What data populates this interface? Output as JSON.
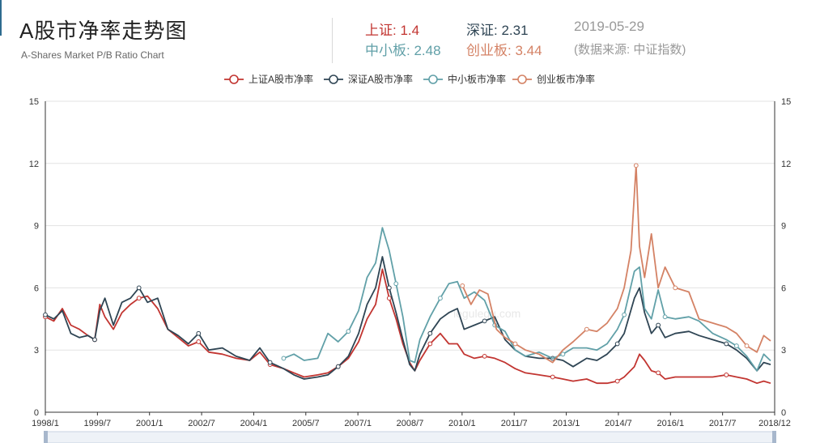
{
  "header": {
    "title": "A股市净率走势图",
    "subtitle": "A-Shares Market P/B Ratio Chart",
    "date": "2019-05-29",
    "source": "(数据来源: 中证指数)"
  },
  "stats": [
    {
      "label": "上证: ",
      "value": "1.4",
      "color": "#c23531"
    },
    {
      "label": "深证: ",
      "value": "2.31",
      "color": "#2f4554"
    },
    {
      "label": "中小板: ",
      "value": "2.48",
      "color": "#61a0a8"
    },
    {
      "label": "创业板: ",
      "value": "3.44",
      "color": "#d48265"
    }
  ],
  "watermark": "legulegu.com",
  "chart_data": {
    "type": "line",
    "x_ticks": [
      "1998/1",
      "1999/7",
      "2001/1",
      "2002/7",
      "2004/1",
      "2005/7",
      "2007/1",
      "2008/7",
      "2010/1",
      "2011/7",
      "2013/1",
      "2014/7",
      "2016/1",
      "2017/7",
      "2018/12"
    ],
    "y_ticks": [
      "0",
      "3",
      "6",
      "9",
      "12",
      "15"
    ],
    "ylim": [
      0,
      15
    ],
    "xlim": [
      1998.0,
      2019.42
    ],
    "grid": true,
    "legend": "top-center",
    "series": [
      {
        "name": "上证A股市净率",
        "color": "#c23531",
        "x": [
          1998.0,
          1998.25,
          1998.5,
          1998.75,
          1999.0,
          1999.25,
          1999.45,
          1999.6,
          1999.75,
          2000.0,
          2000.25,
          2000.5,
          2000.75,
          2001.0,
          2001.3,
          2001.6,
          2001.9,
          2002.2,
          2002.5,
          2002.8,
          2003.2,
          2003.6,
          2004.0,
          2004.3,
          2004.6,
          2005.0,
          2005.3,
          2005.6,
          2006.0,
          2006.3,
          2006.6,
          2006.9,
          2007.2,
          2007.45,
          2007.7,
          2007.9,
          2008.1,
          2008.3,
          2008.5,
          2008.7,
          2008.85,
          2009.0,
          2009.3,
          2009.6,
          2009.85,
          2010.1,
          2010.3,
          2010.6,
          2010.9,
          2011.2,
          2011.5,
          2011.8,
          2012.1,
          2012.5,
          2012.9,
          2013.2,
          2013.5,
          2013.9,
          2014.2,
          2014.5,
          2014.8,
          2015.0,
          2015.3,
          2015.45,
          2015.6,
          2015.8,
          2016.0,
          2016.2,
          2016.5,
          2016.9,
          2017.2,
          2017.6,
          2018.0,
          2018.3,
          2018.6,
          2018.9,
          2019.1,
          2019.3
        ],
        "y": [
          4.6,
          4.4,
          5.0,
          4.2,
          4.0,
          3.7,
          3.5,
          5.2,
          4.6,
          4.0,
          4.8,
          5.2,
          5.5,
          5.6,
          5.0,
          4.0,
          3.6,
          3.2,
          3.4,
          2.9,
          2.8,
          2.6,
          2.5,
          2.9,
          2.3,
          2.1,
          1.9,
          1.7,
          1.8,
          1.9,
          2.2,
          2.6,
          3.4,
          4.5,
          5.2,
          6.9,
          5.5,
          4.5,
          3.3,
          2.4,
          2.0,
          2.5,
          3.3,
          3.8,
          3.3,
          3.3,
          2.8,
          2.6,
          2.7,
          2.6,
          2.4,
          2.1,
          1.9,
          1.8,
          1.7,
          1.6,
          1.5,
          1.6,
          1.4,
          1.4,
          1.5,
          1.7,
          2.2,
          2.8,
          2.5,
          2.0,
          1.9,
          1.6,
          1.7,
          1.7,
          1.7,
          1.7,
          1.8,
          1.7,
          1.6,
          1.4,
          1.5,
          1.4
        ]
      },
      {
        "name": "深证A股市净率",
        "color": "#2f4554",
        "x": [
          1998.0,
          1998.25,
          1998.5,
          1998.75,
          1999.0,
          1999.25,
          1999.45,
          1999.6,
          1999.75,
          2000.0,
          2000.25,
          2000.5,
          2000.75,
          2001.0,
          2001.3,
          2001.6,
          2001.9,
          2002.2,
          2002.5,
          2002.8,
          2003.2,
          2003.6,
          2004.0,
          2004.3,
          2004.6,
          2005.0,
          2005.3,
          2005.6,
          2006.0,
          2006.3,
          2006.6,
          2006.9,
          2007.2,
          2007.45,
          2007.7,
          2007.9,
          2008.1,
          2008.3,
          2008.5,
          2008.7,
          2008.85,
          2009.0,
          2009.3,
          2009.6,
          2009.85,
          2010.1,
          2010.3,
          2010.6,
          2010.9,
          2011.2,
          2011.5,
          2011.8,
          2012.1,
          2012.5,
          2012.9,
          2013.2,
          2013.5,
          2013.9,
          2014.2,
          2014.5,
          2014.8,
          2015.0,
          2015.3,
          2015.45,
          2015.6,
          2015.8,
          2016.0,
          2016.2,
          2016.5,
          2016.9,
          2017.2,
          2017.6,
          2018.0,
          2018.3,
          2018.6,
          2018.9,
          2019.1,
          2019.3
        ],
        "y": [
          4.7,
          4.5,
          4.9,
          3.8,
          3.6,
          3.7,
          3.5,
          4.9,
          5.5,
          4.2,
          5.3,
          5.5,
          6.0,
          5.3,
          5.5,
          4.0,
          3.7,
          3.3,
          3.8,
          3.0,
          3.1,
          2.7,
          2.5,
          3.1,
          2.4,
          2.1,
          1.8,
          1.6,
          1.7,
          1.8,
          2.2,
          2.7,
          3.8,
          5.2,
          6.0,
          7.5,
          6.0,
          4.8,
          3.5,
          2.3,
          2.0,
          2.8,
          3.8,
          4.5,
          4.8,
          5.0,
          4.0,
          4.2,
          4.4,
          4.6,
          3.5,
          3.0,
          2.7,
          2.6,
          2.6,
          2.5,
          2.2,
          2.6,
          2.5,
          2.8,
          3.3,
          3.8,
          5.5,
          6.0,
          4.8,
          3.8,
          4.2,
          3.6,
          3.8,
          3.9,
          3.7,
          3.5,
          3.3,
          3.0,
          2.6,
          2.0,
          2.4,
          2.3
        ]
      },
      {
        "name": "中小板市净率",
        "color": "#61a0a8",
        "x": [
          2005.0,
          2005.3,
          2005.6,
          2006.0,
          2006.3,
          2006.6,
          2006.9,
          2007.2,
          2007.45,
          2007.7,
          2007.9,
          2008.1,
          2008.3,
          2008.5,
          2008.7,
          2008.85,
          2009.0,
          2009.3,
          2009.6,
          2009.85,
          2010.1,
          2010.3,
          2010.6,
          2010.9,
          2011.2,
          2011.5,
          2011.8,
          2012.1,
          2012.5,
          2012.9,
          2013.2,
          2013.5,
          2013.9,
          2014.2,
          2014.5,
          2014.8,
          2015.0,
          2015.3,
          2015.45,
          2015.6,
          2015.8,
          2016.0,
          2016.2,
          2016.5,
          2016.9,
          2017.2,
          2017.6,
          2018.0,
          2018.3,
          2018.6,
          2018.9,
          2019.1,
          2019.3
        ],
        "y": [
          2.6,
          2.8,
          2.5,
          2.6,
          3.8,
          3.4,
          3.9,
          4.9,
          6.5,
          7.2,
          8.9,
          7.8,
          6.2,
          4.6,
          2.5,
          2.4,
          3.5,
          4.6,
          5.5,
          6.2,
          6.3,
          5.5,
          5.8,
          5.4,
          4.2,
          3.9,
          3.0,
          2.7,
          2.9,
          2.6,
          2.8,
          3.1,
          3.1,
          3.0,
          3.3,
          4.0,
          4.7,
          6.8,
          7.0,
          5.0,
          4.5,
          5.9,
          4.6,
          4.5,
          4.6,
          4.4,
          3.8,
          3.5,
          3.2,
          2.7,
          2.0,
          2.8,
          2.48
        ]
      },
      {
        "name": "创业板市净率",
        "color": "#d48265",
        "x": [
          2010.25,
          2010.5,
          2010.75,
          2011.0,
          2011.25,
          2011.5,
          2011.8,
          2012.1,
          2012.5,
          2012.9,
          2013.2,
          2013.5,
          2013.9,
          2014.2,
          2014.5,
          2014.8,
          2015.0,
          2015.2,
          2015.35,
          2015.45,
          2015.6,
          2015.8,
          2016.0,
          2016.2,
          2016.5,
          2016.9,
          2017.2,
          2017.6,
          2018.0,
          2018.3,
          2018.6,
          2018.9,
          2019.1,
          2019.3
        ],
        "y": [
          6.1,
          5.2,
          5.9,
          5.7,
          4.0,
          3.6,
          3.3,
          3.0,
          2.8,
          2.4,
          3.0,
          3.4,
          4.0,
          3.9,
          4.3,
          5.0,
          6.0,
          7.8,
          11.9,
          8.0,
          6.5,
          8.6,
          6.0,
          7.0,
          6.0,
          5.8,
          4.5,
          4.3,
          4.1,
          3.8,
          3.2,
          2.9,
          3.7,
          3.44
        ]
      }
    ]
  }
}
